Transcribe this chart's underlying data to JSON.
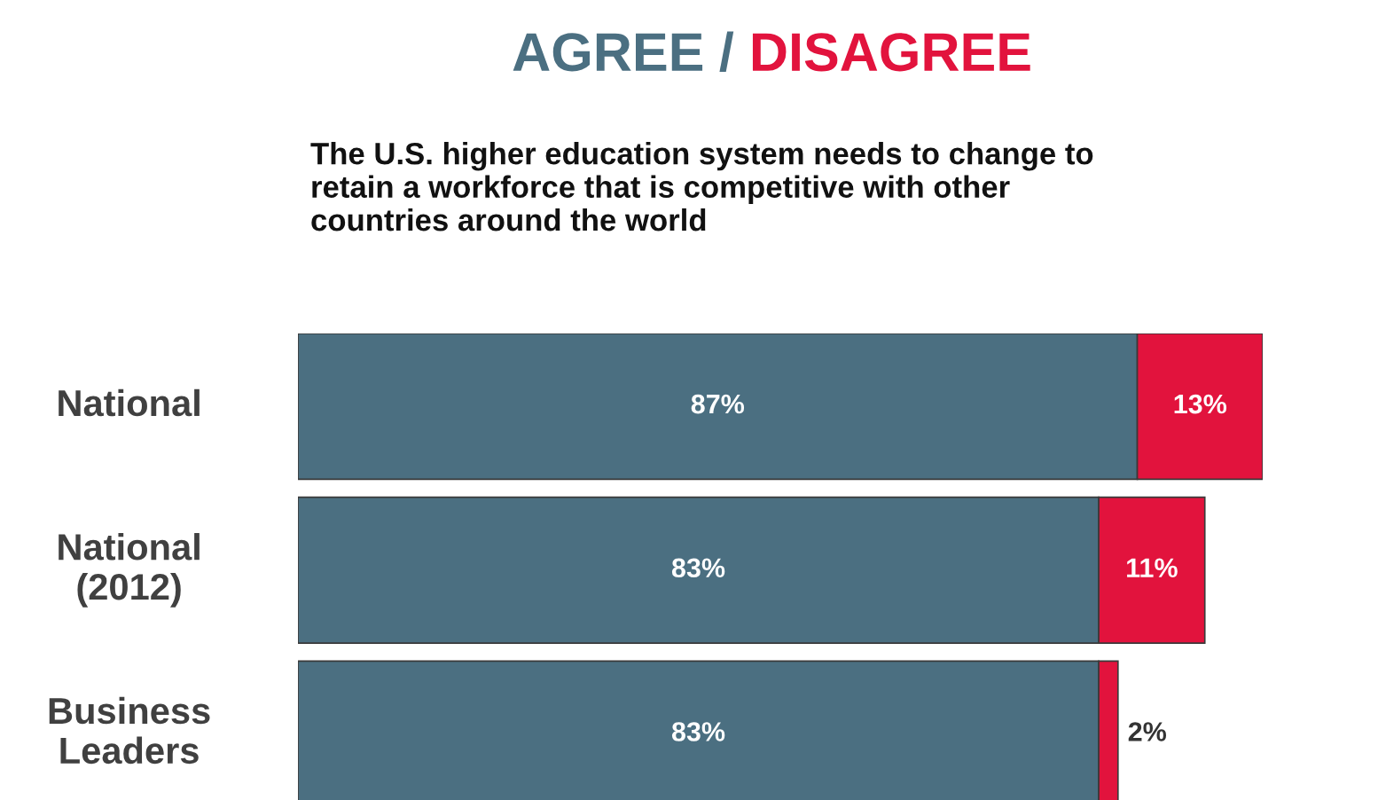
{
  "chart_data": {
    "type": "bar",
    "orientation": "horizontal",
    "stacked": true,
    "legend": "top",
    "subtitle": "The U.S. higher education system needs to change to\nretain a workforce that is competitive with other\ncountries around the world",
    "categories": [
      "National",
      "National\n(2012)",
      "Business\nLeaders"
    ],
    "series": [
      {
        "name": "AGREE",
        "color": "#4b6f81",
        "values": [
          87,
          83,
          83
        ],
        "value_labels": [
          "87%",
          "83%",
          "83%"
        ]
      },
      {
        "name": "DISAGREE",
        "color": "#e2133d",
        "values": [
          13,
          11,
          2
        ],
        "value_labels": [
          "13%",
          "11%",
          "2%"
        ]
      }
    ],
    "annotations": [
      "/"
    ]
  }
}
